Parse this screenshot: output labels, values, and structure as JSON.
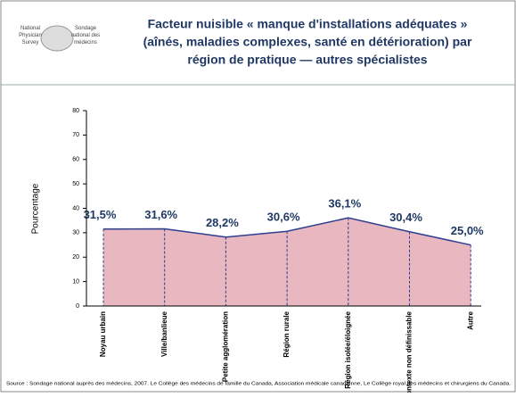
{
  "logo": {
    "left": "National Physician Survey",
    "right": "Sondage national des médecins"
  },
  "chart_data": {
    "type": "area",
    "title": [
      "Facteur nuisible « manque d'installations adéquates »",
      "(aînés, maladies complexes, santé en détérioration) par",
      "région de pratique — autres spécialistes"
    ],
    "ylabel": "Pourcentage",
    "categories": [
      "Noyau urbain",
      "Ville/banlieue",
      "Petite agglomération",
      "Région rurale",
      "Région isolée/éloignée",
      "Contexte non définissable",
      "Autre"
    ],
    "values": [
      31.5,
      31.6,
      28.2,
      30.6,
      36.1,
      30.4,
      25.0
    ],
    "value_labels": [
      "31,5%",
      "31,6%",
      "28,2%",
      "30,6%",
      "36,1%",
      "30,4%",
      "25,0%"
    ],
    "color": "#e9b7bf",
    "line_color": "#2e3f8f",
    "ylim": [
      0,
      80
    ],
    "yticks": [
      0,
      10,
      20,
      30,
      40,
      50,
      60,
      70,
      80
    ],
    "source": "Source : Sondage national auprès des médecins, 2007. Le Collège des médecins de famille du Canada, Association médicale canadienne, Le Collège royal des médecins et chirurgiens du Canada."
  }
}
